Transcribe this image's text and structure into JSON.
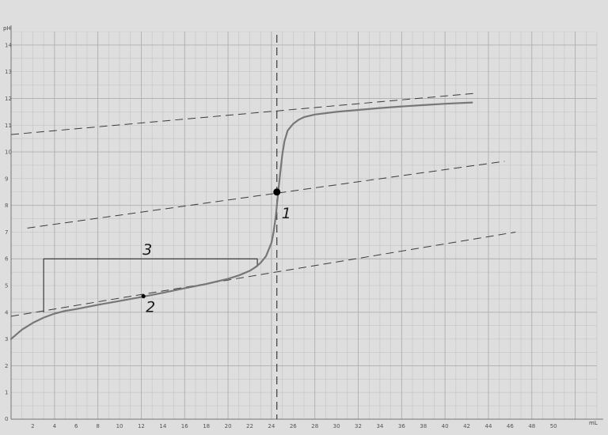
{
  "chart_data": {
    "type": "line",
    "title": "",
    "xlabel": "mL",
    "ylabel": "pH",
    "xlim": [
      0,
      54
    ],
    "ylim": [
      0,
      14.5
    ],
    "grid": true,
    "x_ticks": [
      2,
      4,
      6,
      8,
      10,
      12,
      14,
      16,
      18,
      20,
      22,
      24,
      26,
      28,
      30,
      32,
      34,
      36,
      38,
      40,
      42,
      44,
      46,
      48,
      50
    ],
    "x_tick_labels": [
      "2",
      "4",
      "6",
      "8",
      "10",
      "12",
      "14",
      "16",
      "18",
      "20",
      "22",
      "24",
      "26",
      "28",
      "30",
      "32",
      "34",
      "36",
      "38",
      "40",
      "42",
      "44",
      "46",
      "48",
      "50"
    ],
    "y_ticks": [
      1,
      2,
      3,
      4,
      5,
      6,
      7,
      8,
      9,
      10,
      11,
      12,
      13,
      14
    ],
    "y_tick_labels": [
      "1",
      "2",
      "3",
      "4",
      "5",
      "6",
      "7",
      "8",
      "9",
      "10",
      "11",
      "12",
      "13",
      "14"
    ],
    "origin_label": "0",
    "series": [
      {
        "x": [
          0,
          1,
          2,
          3,
          4,
          5,
          6,
          8,
          10,
          12,
          14,
          16,
          18,
          20,
          21,
          22,
          22.5,
          23,
          23.5,
          24,
          24.2,
          24.4,
          24.6,
          24.8,
          25,
          25.2,
          25.5,
          26,
          26.5,
          27,
          28,
          30,
          32,
          34,
          36,
          38,
          40,
          42.5
        ],
        "y": [
          3.0,
          3.35,
          3.6,
          3.8,
          3.95,
          4.05,
          4.12,
          4.28,
          4.42,
          4.57,
          4.73,
          4.9,
          5.06,
          5.25,
          5.38,
          5.55,
          5.68,
          5.85,
          6.1,
          6.6,
          7.0,
          7.6,
          8.4,
          9.2,
          9.9,
          10.4,
          10.8,
          11.05,
          11.2,
          11.3,
          11.4,
          11.5,
          11.57,
          11.64,
          11.7,
          11.75,
          11.8,
          11.85
        ]
      }
    ],
    "tangent_lines": [
      {
        "x": [
          0,
          43
        ],
        "y": [
          10.65,
          12.2
        ]
      },
      {
        "x": [
          1.5,
          45.5
        ],
        "y": [
          7.15,
          9.65
        ]
      },
      {
        "x": [
          0,
          46.5
        ],
        "y": [
          3.85,
          7.0
        ]
      }
    ],
    "equivalence_x": 24.5,
    "points": [
      {
        "x": 24.5,
        "y": 8.5,
        "label": "1",
        "size": "large"
      },
      {
        "x": 12.2,
        "y": 4.6,
        "label": "2",
        "size": "small"
      }
    ],
    "bracket": {
      "x_start": 3,
      "x_end": 22.7,
      "y_top": 6.0,
      "y_bottom": 4.0,
      "label": "3"
    }
  }
}
